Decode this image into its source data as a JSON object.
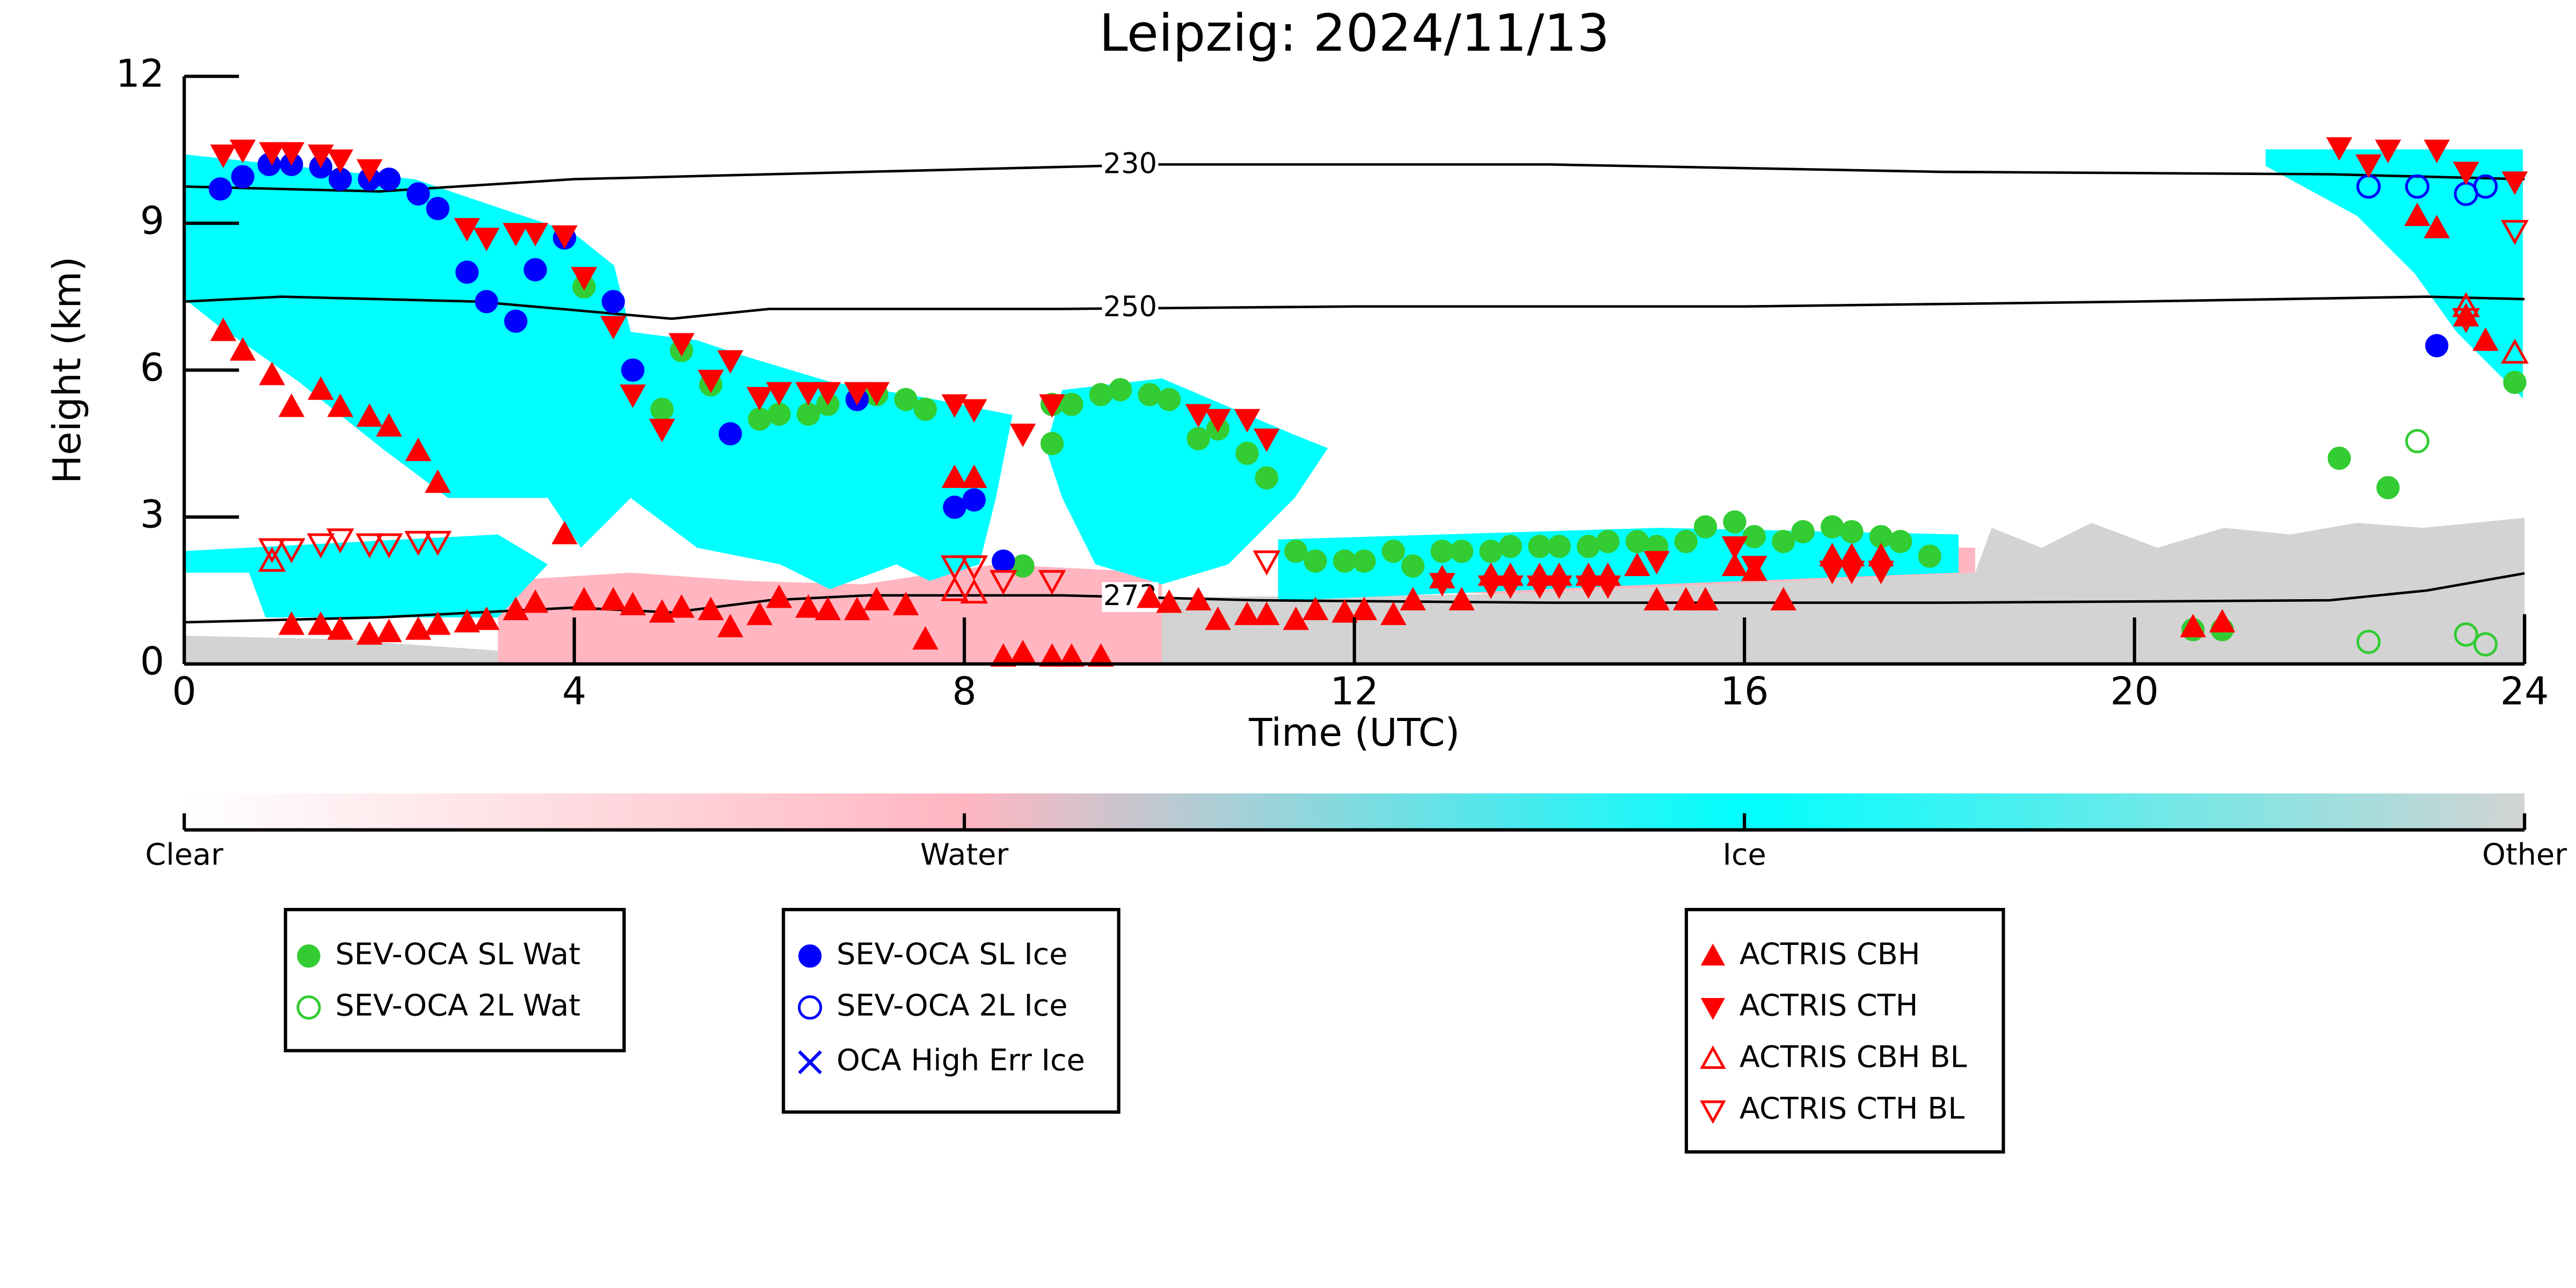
{
  "chart_data": {
    "type": "scatter",
    "title": "Leipzig: 2024/11/13",
    "x_label": "Time (UTC)",
    "y_label": "Height (km)",
    "xlim": [
      0,
      24
    ],
    "xticks": [
      0,
      4,
      8,
      12,
      16,
      20,
      24
    ],
    "ylim": [
      0,
      12
    ],
    "yticks": [
      0,
      3,
      6,
      9,
      12
    ],
    "colorbar": {
      "labels": [
        "Clear",
        "Water",
        "Ice",
        "Other"
      ],
      "colors": [
        "#ffffff",
        "#ffb6c1",
        "#00ffff",
        "#d3d3d3"
      ]
    },
    "contours": [
      {
        "label": "230",
        "x": [
          0,
          2,
          4,
          6,
          8,
          10,
          14,
          18,
          22,
          24
        ],
        "y": [
          9.75,
          9.65,
          9.9,
          10.0,
          10.1,
          10.2,
          10.2,
          10.05,
          10.0,
          9.9
        ]
      },
      {
        "label": "250",
        "x": [
          0,
          1,
          3,
          5,
          6,
          9,
          12,
          16,
          20,
          23,
          24
        ],
        "y": [
          7.4,
          7.5,
          7.4,
          7.05,
          7.25,
          7.25,
          7.3,
          7.3,
          7.4,
          7.5,
          7.45
        ]
      },
      {
        "label": "273",
        "x": [
          0,
          2,
          4,
          5,
          6,
          7,
          9,
          11,
          14,
          18,
          22,
          23,
          24
        ],
        "y": [
          0.85,
          0.95,
          1.15,
          1.05,
          1.3,
          1.4,
          1.4,
          1.3,
          1.25,
          1.25,
          1.3,
          1.5,
          1.85
        ]
      }
    ],
    "series": [
      {
        "name": "SEV-OCA SL Wat",
        "color": "#33cc33",
        "marker": "circle",
        "x": [
          4.1,
          4.9,
          5.1,
          5.4,
          5.9,
          6.1,
          6.4,
          6.6,
          7.1,
          7.4,
          7.6,
          8.6,
          8.9,
          8.9,
          9.1,
          9.4,
          9.6,
          9.9,
          10.1,
          10.4,
          10.6,
          10.9,
          11.1,
          11.4,
          11.6,
          11.9,
          12.1,
          12.4,
          12.6,
          12.9,
          13.1,
          13.4,
          13.6,
          13.9,
          14.1,
          14.4,
          14.6,
          14.9,
          15.1,
          15.4,
          15.6,
          15.9,
          16.1,
          16.4,
          16.6,
          16.9,
          17.1,
          17.4,
          17.6,
          17.9,
          20.6,
          20.9,
          22.1,
          22.6,
          23.9
        ],
        "y": [
          7.7,
          5.2,
          6.4,
          5.7,
          5.0,
          5.1,
          5.1,
          5.3,
          5.5,
          5.4,
          5.2,
          2.0,
          4.5,
          5.3,
          5.3,
          5.5,
          5.6,
          5.5,
          5.4,
          4.6,
          4.8,
          4.3,
          3.8,
          2.3,
          2.1,
          2.1,
          2.1,
          2.3,
          2.0,
          2.3,
          2.3,
          2.3,
          2.4,
          2.4,
          2.4,
          2.4,
          2.5,
          2.5,
          2.4,
          2.5,
          2.8,
          2.9,
          2.6,
          2.5,
          2.7,
          2.8,
          2.7,
          2.6,
          2.5,
          2.2,
          0.7,
          0.7,
          4.2,
          3.6,
          5.75
        ]
      },
      {
        "name": "SEV-OCA 2L Wat",
        "color": "#33cc33",
        "marker": "circle-open",
        "x": [
          22.4,
          22.9,
          23.4,
          23.6
        ],
        "y": [
          0.45,
          4.55,
          0.6,
          0.4
        ]
      },
      {
        "name": "SEV-OCA SL Ice",
        "color": "#0000ff",
        "marker": "circle",
        "x": [
          0.37,
          0.6,
          0.87,
          1.1,
          1.4,
          1.6,
          1.9,
          2.1,
          2.4,
          2.6,
          2.9,
          3.1,
          3.4,
          3.6,
          3.9,
          4.4,
          4.6,
          5.6,
          6.9,
          7.9,
          8.1,
          8.4,
          23.1
        ],
        "y": [
          9.7,
          9.95,
          10.2,
          10.2,
          10.15,
          9.9,
          9.9,
          9.9,
          9.6,
          9.3,
          8.0,
          7.4,
          7.0,
          8.05,
          8.7,
          7.4,
          6.0,
          4.7,
          5.4,
          3.2,
          3.35,
          2.1,
          6.5
        ]
      },
      {
        "name": "SEV-OCA 2L Ice",
        "color": "#0000ff",
        "marker": "circle-open",
        "x": [
          22.4,
          22.9,
          23.4,
          23.6
        ],
        "y": [
          9.75,
          9.75,
          9.6,
          9.75
        ]
      },
      {
        "name": "OCA High Err Ice",
        "color": "#0000ff",
        "marker": "x",
        "x": [],
        "y": []
      },
      {
        "name": "ACTRIS CBH",
        "color": "#ff0000",
        "marker": "triangle-up",
        "x": [
          0.4,
          0.6,
          0.9,
          1.1,
          1.4,
          1.6,
          1.9,
          2.1,
          2.4,
          2.6,
          3.9,
          1.1,
          1.4,
          1.6,
          1.9,
          2.1,
          2.4,
          2.6,
          2.9,
          3.1,
          3.4,
          3.6,
          4.1,
          4.4,
          4.6,
          4.9,
          5.1,
          5.4,
          5.6,
          5.9,
          6.1,
          6.4,
          6.6,
          6.9,
          7.1,
          7.4,
          7.6,
          7.9,
          8.1,
          8.4,
          8.6,
          8.9,
          9.1,
          9.4,
          9.9,
          10.1,
          10.4,
          10.6,
          10.9,
          11.1,
          11.4,
          11.6,
          11.9,
          12.1,
          12.4,
          12.6,
          12.9,
          13.1,
          13.4,
          13.6,
          13.9,
          14.1,
          14.4,
          14.6,
          14.9,
          15.1,
          15.4,
          15.6,
          15.9,
          16.1,
          16.4,
          16.9,
          17.1,
          17.4,
          20.6,
          20.9,
          22.9,
          23.1,
          23.4,
          23.6
        ],
        "y": [
          6.8,
          6.4,
          5.9,
          5.25,
          5.6,
          5.25,
          5.05,
          4.85,
          4.35,
          3.7,
          2.65,
          0.8,
          0.8,
          0.7,
          0.6,
          0.65,
          0.7,
          0.8,
          0.85,
          0.9,
          1.1,
          1.25,
          1.3,
          1.3,
          1.2,
          1.05,
          1.15,
          1.1,
          0.75,
          1.0,
          1.35,
          1.15,
          1.1,
          1.1,
          1.3,
          1.2,
          0.5,
          3.8,
          3.8,
          0.15,
          0.2,
          0.15,
          0.15,
          0.15,
          1.35,
          1.25,
          1.3,
          0.9,
          1.0,
          1.0,
          0.9,
          1.1,
          1.05,
          1.1,
          1.0,
          1.3,
          1.75,
          1.3,
          1.8,
          1.8,
          1.8,
          1.8,
          1.8,
          1.8,
          2.0,
          1.3,
          1.3,
          1.3,
          2.0,
          1.9,
          1.3,
          2.2,
          2.2,
          2.2,
          0.75,
          0.85,
          9.15,
          8.9,
          7.1,
          6.6
        ]
      },
      {
        "name": "ACTRIS CTH",
        "color": "#ff0000",
        "marker": "triangle-down",
        "x": [
          0.4,
          0.6,
          0.9,
          1.1,
          1.4,
          1.6,
          1.9,
          2.9,
          3.1,
          3.4,
          3.6,
          3.9,
          4.1,
          4.4,
          4.6,
          4.9,
          5.1,
          5.4,
          5.6,
          5.9,
          6.1,
          6.4,
          6.6,
          6.9,
          7.1,
          7.9,
          8.1,
          8.6,
          8.9,
          10.4,
          10.6,
          10.9,
          11.1,
          12.9,
          13.4,
          13.6,
          13.9,
          14.1,
          14.4,
          14.6,
          15.1,
          15.9,
          16.1,
          16.9,
          17.1,
          17.4,
          22.1,
          22.4,
          22.6,
          23.1,
          23.4,
          23.9
        ],
        "y": [
          10.4,
          10.5,
          10.45,
          10.45,
          10.4,
          10.3,
          10.1,
          8.9,
          8.7,
          8.8,
          8.8,
          8.75,
          7.9,
          6.9,
          5.5,
          4.8,
          6.55,
          5.8,
          6.2,
          5.45,
          5.55,
          5.55,
          5.55,
          5.55,
          5.55,
          5.3,
          5.2,
          4.7,
          5.3,
          5.1,
          5.0,
          5.0,
          4.6,
          1.65,
          1.6,
          1.6,
          1.6,
          1.6,
          1.6,
          1.6,
          2.1,
          2.4,
          2.0,
          1.9,
          1.9,
          1.9,
          10.55,
          10.2,
          10.5,
          10.5,
          10.05,
          9.85
        ]
      },
      {
        "name": "ACTRIS CBH BL",
        "color": "#ff0000",
        "marker": "triangle-up-open",
        "x": [
          0.9,
          7.9,
          8.1,
          8.6,
          23.4,
          23.9
        ],
        "y": [
          2.1,
          1.5,
          1.45,
          0.2,
          7.3,
          6.35
        ]
      },
      {
        "name": "ACTRIS CTH BL",
        "color": "#ff0000",
        "marker": "triangle-down-open",
        "x": [
          0.9,
          1.1,
          1.4,
          1.6,
          1.9,
          2.1,
          2.4,
          2.6,
          7.9,
          8.1,
          8.4,
          8.9,
          11.1,
          23.4,
          23.9
        ],
        "y": [
          2.35,
          2.35,
          2.45,
          2.55,
          2.45,
          2.45,
          2.5,
          2.5,
          2.0,
          2.0,
          1.7,
          1.7,
          2.1,
          7.05,
          8.85
        ]
      }
    ]
  }
}
